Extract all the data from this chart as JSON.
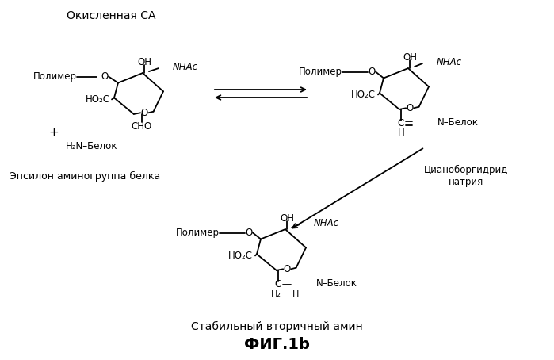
{
  "title": "ФИГ.1b",
  "bg_color": "#ffffff",
  "figsize": [
    6.99,
    4.54
  ],
  "dpi": 100,
  "top_label": "Окисленная СА",
  "left_label": "Эпсилон аминогруппа белка",
  "bottom_label": "Стабильный вторичный амин",
  "right_label": "Цианоборгидрид\nнатрия"
}
